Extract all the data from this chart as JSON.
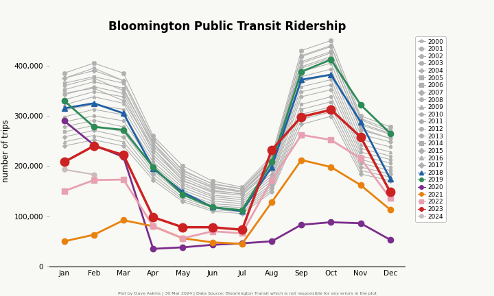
{
  "title": "Bloomington Public Transit Ridership",
  "ylabel": "number of trips",
  "footnote": "Plot by Dave Askins | 30 Mar 2024 | Data Source: Bloomington Transit which is not responsible for any errors in the plot",
  "months": [
    "Jan",
    "Feb",
    "Mar",
    "Apr",
    "May",
    "Jun",
    "Jul",
    "Aug",
    "Sep",
    "Oct",
    "Nov",
    "Dec"
  ],
  "years": [
    2000,
    2001,
    2002,
    2003,
    2004,
    2005,
    2006,
    2007,
    2008,
    2009,
    2010,
    2011,
    2012,
    2013,
    2014,
    2015,
    2016,
    2017,
    2018,
    2019,
    2020,
    2021,
    2022,
    2023,
    2024
  ],
  "data": {
    "2000": [
      345000,
      355000,
      330000,
      235000,
      170000,
      150000,
      145000,
      195000,
      395000,
      415000,
      275000,
      255000
    ],
    "2001": [
      360000,
      375000,
      350000,
      245000,
      180000,
      158000,
      150000,
      205000,
      405000,
      425000,
      285000,
      265000
    ],
    "2002": [
      375000,
      395000,
      370000,
      255000,
      190000,
      165000,
      155000,
      215000,
      420000,
      440000,
      295000,
      272000
    ],
    "2003": [
      385000,
      405000,
      385000,
      260000,
      200000,
      170000,
      158000,
      220000,
      430000,
      450000,
      300000,
      278000
    ],
    "2004": [
      375000,
      390000,
      370000,
      252000,
      192000,
      164000,
      154000,
      212000,
      418000,
      438000,
      292000,
      268000
    ],
    "2005": [
      365000,
      378000,
      365000,
      246000,
      186000,
      160000,
      150000,
      208000,
      408000,
      428000,
      282000,
      263000
    ],
    "2006": [
      352000,
      368000,
      355000,
      240000,
      182000,
      156000,
      148000,
      203000,
      398000,
      418000,
      272000,
      255000
    ],
    "2007": [
      342000,
      358000,
      345000,
      234000,
      176000,
      152000,
      144000,
      198000,
      388000,
      405000,
      263000,
      248000
    ],
    "2008": [
      332000,
      348000,
      338000,
      228000,
      172000,
      147000,
      142000,
      192000,
      378000,
      393000,
      253000,
      238000
    ],
    "2009": [
      322000,
      338000,
      325000,
      222000,
      166000,
      142000,
      137000,
      185000,
      368000,
      382000,
      243000,
      228000
    ],
    "2010": [
      312000,
      322000,
      313000,
      216000,
      162000,
      139000,
      133000,
      180000,
      358000,
      372000,
      235000,
      220000
    ],
    "2011": [
      298000,
      313000,
      302000,
      208000,
      157000,
      135000,
      129000,
      175000,
      348000,
      362000,
      228000,
      213000
    ],
    "2012": [
      288000,
      300000,
      290000,
      202000,
      152000,
      130000,
      125000,
      170000,
      338000,
      352000,
      220000,
      206000
    ],
    "2013": [
      278000,
      291000,
      278000,
      196000,
      147000,
      125000,
      121000,
      164000,
      323000,
      338000,
      213000,
      198000
    ],
    "2014": [
      268000,
      281000,
      268000,
      190000,
      142000,
      121000,
      117000,
      160000,
      313000,
      328000,
      206000,
      191000
    ],
    "2015": [
      258000,
      271000,
      258000,
      184000,
      137000,
      117000,
      113000,
      156000,
      303000,
      318000,
      198000,
      184000
    ],
    "2016": [
      248000,
      261000,
      248000,
      178000,
      133000,
      113000,
      109000,
      152000,
      293000,
      308000,
      191000,
      178000
    ],
    "2017": [
      240000,
      252000,
      240000,
      172000,
      129000,
      110000,
      105000,
      148000,
      283000,
      299000,
      184000,
      171000
    ],
    "2018": [
      315000,
      325000,
      305000,
      195000,
      148000,
      118000,
      110000,
      198000,
      372000,
      382000,
      288000,
      174000
    ],
    "2019": [
      330000,
      278000,
      272000,
      198000,
      143000,
      118000,
      112000,
      208000,
      388000,
      412000,
      322000,
      265000
    ],
    "2020": [
      290000,
      242000,
      218000,
      35000,
      38000,
      43000,
      46000,
      50000,
      83000,
      88000,
      86000,
      53000
    ],
    "2021": [
      50000,
      63000,
      92000,
      80000,
      56000,
      48000,
      45000,
      128000,
      212000,
      198000,
      162000,
      113000
    ],
    "2022": [
      150000,
      172000,
      173000,
      80000,
      56000,
      70000,
      66000,
      172000,
      262000,
      252000,
      215000,
      136000
    ],
    "2023": [
      208000,
      240000,
      222000,
      98000,
      78000,
      78000,
      73000,
      232000,
      298000,
      312000,
      258000,
      148000
    ],
    "2024": [
      193000,
      183000,
      null,
      null,
      null,
      null,
      null,
      null,
      null,
      null,
      null,
      null
    ]
  },
  "series_styles": {
    "2000": {
      "color": "#b0b0b0",
      "marker": "*",
      "lw": 0.8,
      "ms": 4,
      "zorder": 2
    },
    "2001": {
      "color": "#b0b0b0",
      "marker": "o",
      "lw": 0.8,
      "ms": 3,
      "zorder": 2
    },
    "2002": {
      "color": "#b0b0b0",
      "marker": "o",
      "lw": 0.8,
      "ms": 3,
      "zorder": 2
    },
    "2003": {
      "color": "#b0b0b0",
      "marker": "X",
      "lw": 0.8,
      "ms": 4,
      "zorder": 2
    },
    "2004": {
      "color": "#b0b0b0",
      "marker": "P",
      "lw": 0.8,
      "ms": 4,
      "zorder": 2
    },
    "2005": {
      "color": "#b0b0b0",
      "marker": "s",
      "lw": 0.8,
      "ms": 3,
      "zorder": 2
    },
    "2006": {
      "color": "#b0b0b0",
      "marker": "s",
      "lw": 0.8,
      "ms": 3,
      "zorder": 2
    },
    "2007": {
      "color": "#b0b0b0",
      "marker": "D",
      "lw": 0.8,
      "ms": 3,
      "zorder": 2
    },
    "2008": {
      "color": "#b0b0b0",
      "marker": "o",
      "lw": 0.8,
      "ms": 3,
      "zorder": 2
    },
    "2009": {
      "color": "#b0b0b0",
      "marker": "^",
      "lw": 0.8,
      "ms": 3,
      "zorder": 2
    },
    "2010": {
      "color": "#b0b0b0",
      "marker": "p",
      "lw": 0.8,
      "ms": 3,
      "zorder": 2
    },
    "2011": {
      "color": "#b0b0b0",
      "marker": "o",
      "lw": 0.8,
      "ms": 3,
      "zorder": 2
    },
    "2012": {
      "color": "#b0b0b0",
      "marker": "o",
      "lw": 0.8,
      "ms": 3,
      "zorder": 2
    },
    "2013": {
      "color": "#b0b0b0",
      "marker": "o",
      "lw": 0.8,
      "ms": 3,
      "zorder": 2
    },
    "2014": {
      "color": "#b0b0b0",
      "marker": "s",
      "lw": 0.8,
      "ms": 3,
      "zorder": 2
    },
    "2015": {
      "color": "#b0b0b0",
      "marker": "D",
      "lw": 0.8,
      "ms": 3,
      "zorder": 2
    },
    "2016": {
      "color": "#b0b0b0",
      "marker": "^",
      "lw": 0.8,
      "ms": 3,
      "zorder": 2
    },
    "2017": {
      "color": "#b0b0b0",
      "marker": "D",
      "lw": 0.8,
      "ms": 3,
      "zorder": 2
    },
    "2018": {
      "color": "#1f5fa6",
      "marker": "^",
      "lw": 2.0,
      "ms": 6,
      "zorder": 5
    },
    "2019": {
      "color": "#2d8b57",
      "marker": "o",
      "lw": 2.0,
      "ms": 6,
      "zorder": 5
    },
    "2020": {
      "color": "#7b2d8b",
      "marker": "o",
      "lw": 2.0,
      "ms": 6,
      "zorder": 5
    },
    "2021": {
      "color": "#e8820c",
      "marker": "o",
      "lw": 2.0,
      "ms": 6,
      "zorder": 5
    },
    "2022": {
      "color": "#e8a0b0",
      "marker": "s",
      "lw": 2.0,
      "ms": 6,
      "zorder": 5
    },
    "2023": {
      "color": "#cc2222",
      "marker": "o",
      "lw": 2.5,
      "ms": 9,
      "zorder": 6
    },
    "2024": {
      "color": "#ccbbbb",
      "marker": "o",
      "lw": 1.5,
      "ms": 5,
      "zorder": 4
    }
  },
  "legend_markers": {
    "2000": "*",
    "2001": "o",
    "2002": "o",
    "2003": "X",
    "2004": "P",
    "2005": "s",
    "2006": "s",
    "2007": "D",
    "2008": "o",
    "2009": "^",
    "2010": "p",
    "2011": "o",
    "2012": "o",
    "2013": "o",
    "2014": "s",
    "2015": "D",
    "2016": "^",
    "2017": "D",
    "2018": "^",
    "2019": "o",
    "2020": "o",
    "2021": "o",
    "2022": "s",
    "2023": "o",
    "2024": "o"
  },
  "legend_colors": {
    "2000": "#b0b0b0",
    "2001": "#b0b0b0",
    "2002": "#b0b0b0",
    "2003": "#b0b0b0",
    "2004": "#b0b0b0",
    "2005": "#b0b0b0",
    "2006": "#b0b0b0",
    "2007": "#b0b0b0",
    "2008": "#b0b0b0",
    "2009": "#b0b0b0",
    "2010": "#b0b0b0",
    "2011": "#b0b0b0",
    "2012": "#b0b0b0",
    "2013": "#b0b0b0",
    "2014": "#b0b0b0",
    "2015": "#b0b0b0",
    "2016": "#b0b0b0",
    "2017": "#b0b0b0",
    "2018": "#1f5fa6",
    "2019": "#2d8b57",
    "2020": "#7b2d8b",
    "2021": "#e8820c",
    "2022": "#e8a0b0",
    "2023": "#cc2222",
    "2024": "#ccbbbb"
  },
  "ylim": [
    0,
    460000
  ],
  "yticks": [
    0,
    100000,
    200000,
    300000,
    400000
  ],
  "background_color": "#f8f8f4"
}
